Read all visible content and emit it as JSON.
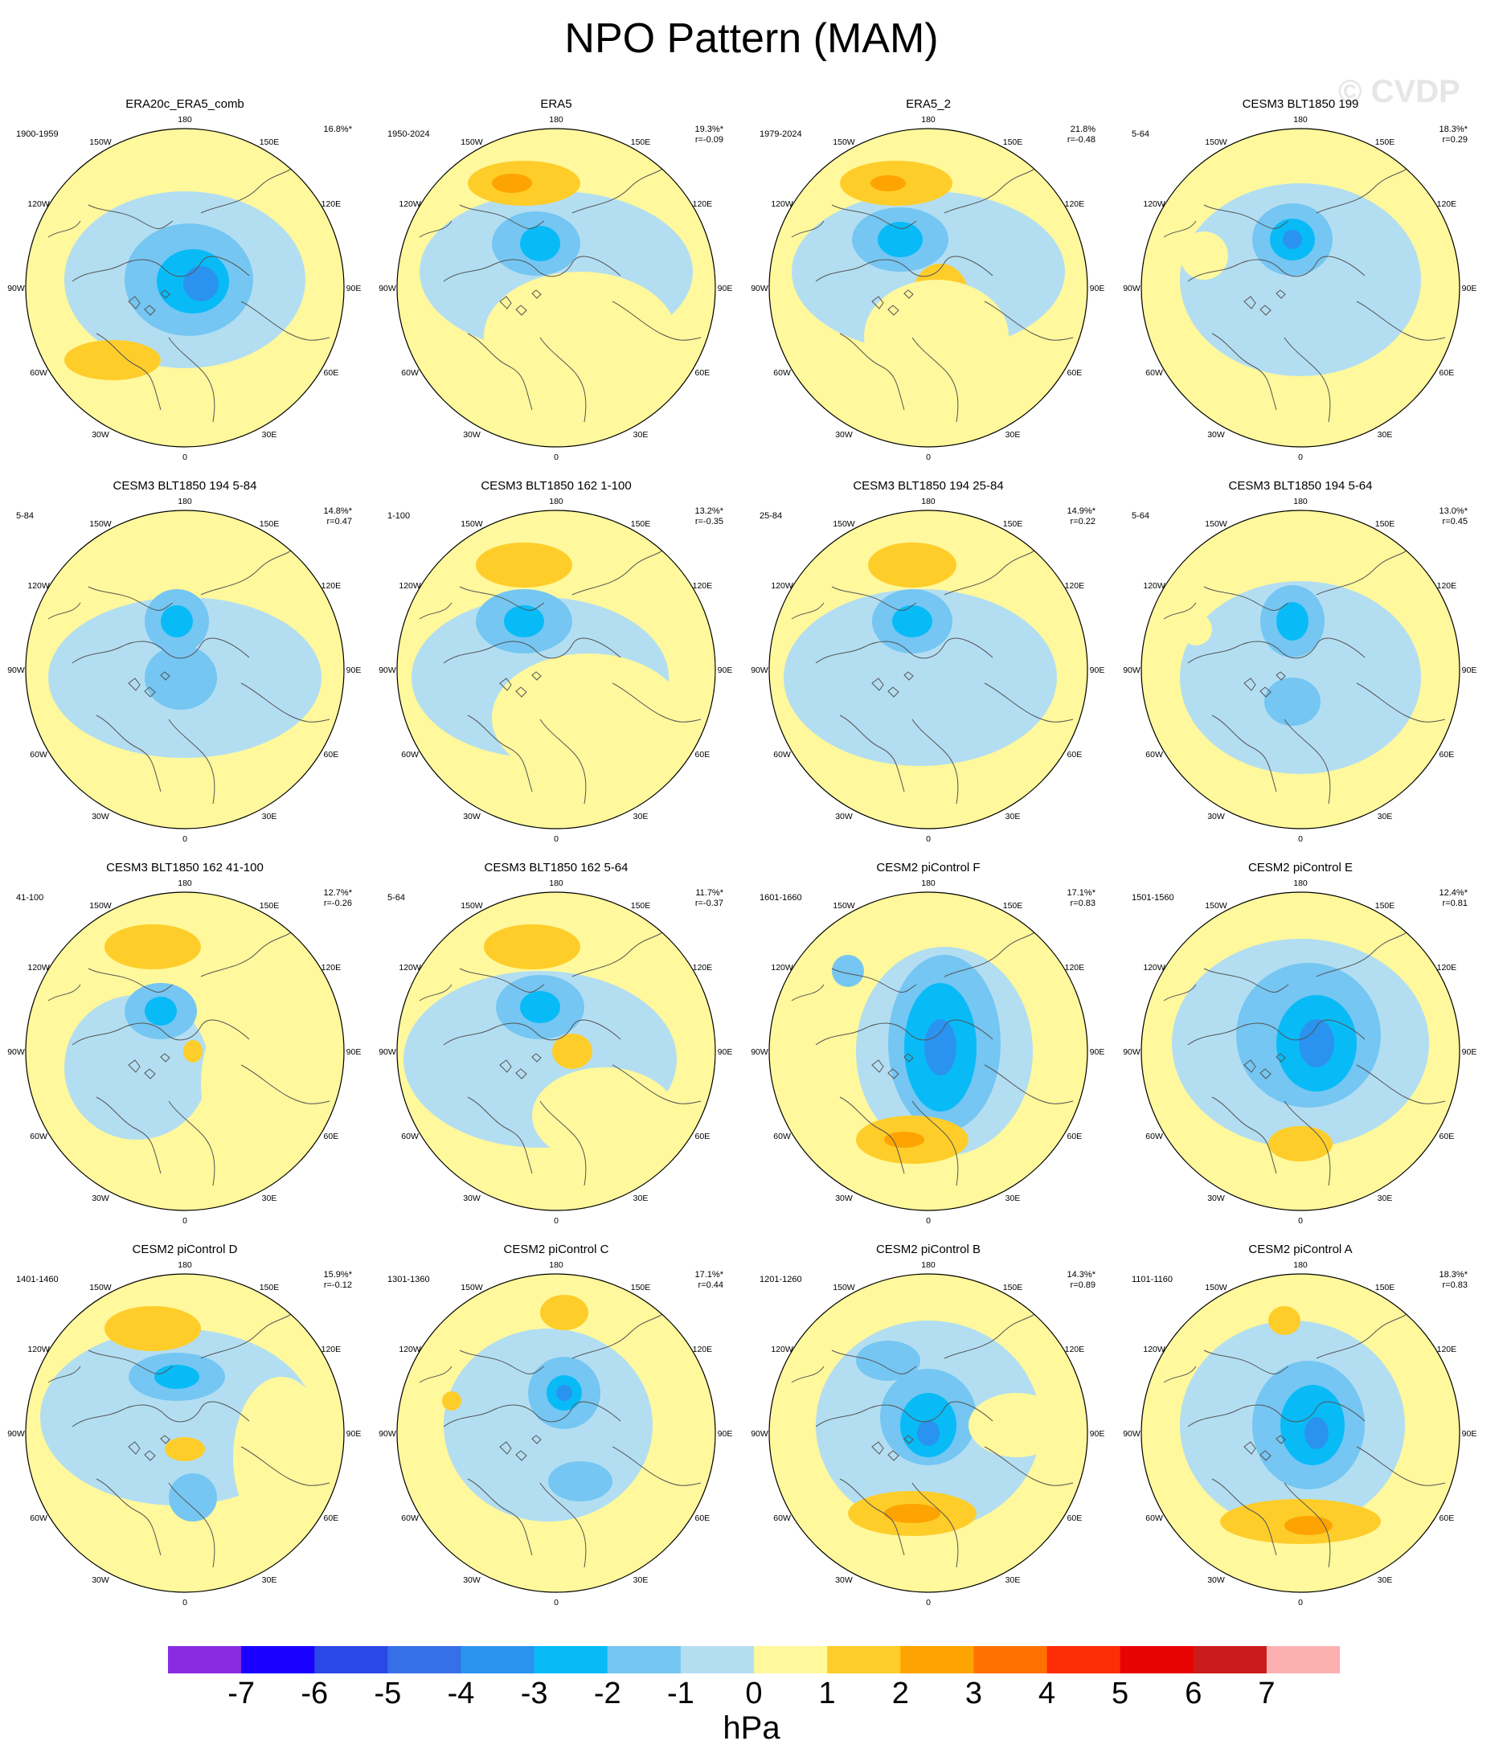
{
  "figure": {
    "title": "NPO Pattern (MAM)",
    "watermark": "© CVDP",
    "lon_labels": [
      "180",
      "150E",
      "120E",
      "90E",
      "60E",
      "30E",
      "0",
      "30W",
      "60W",
      "90W",
      "120W",
      "150W"
    ]
  },
  "colorbar": {
    "units": "hPa",
    "ticks": [
      "-7",
      "-6",
      "-5",
      "-4",
      "-3",
      "-2",
      "-1",
      "0",
      "1",
      "2",
      "3",
      "4",
      "5",
      "6",
      "7"
    ],
    "colors": [
      "#8a2be2",
      "#1a00ff",
      "#2b47e6",
      "#3670e8",
      "#2a93ef",
      "#08bbf7",
      "#75c6f2",
      "#b3def2",
      "#fff89c",
      "#fecd2a",
      "#fda403",
      "#fe7203",
      "#fe2d06",
      "#e80303",
      "#cc1b1b",
      "#fcb0b0"
    ]
  },
  "panels": [
    {
      "title": "ERA20c_ERA5_comb",
      "period": "1900-1959",
      "pct": "16.8%*",
      "r": ""
    },
    {
      "title": "ERA5",
      "period": "1950-2024",
      "pct": "19.3%*",
      "r": "r=-0.09"
    },
    {
      "title": "ERA5_2",
      "period": "1979-2024",
      "pct": "21.8%",
      "r": "r=-0.48"
    },
    {
      "title": "CESM3 BLT1850 199",
      "period": "5-64",
      "pct": "18.3%*",
      "r": "r=0.29"
    },
    {
      "title": "CESM3 BLT1850 194 5-84",
      "period": "5-84",
      "pct": "14.8%*",
      "r": "r=0.47"
    },
    {
      "title": "CESM3 BLT1850 162 1-100",
      "period": "1-100",
      "pct": "13.2%*",
      "r": "r=-0.35"
    },
    {
      "title": "CESM3 BLT1850 194 25-84",
      "period": "25-84",
      "pct": "14.9%*",
      "r": "r=0.22"
    },
    {
      "title": "CESM3 BLT1850 194 5-64",
      "period": "5-64",
      "pct": "13.0%*",
      "r": "r=0.45"
    },
    {
      "title": "CESM3 BLT1850 162 41-100",
      "period": "41-100",
      "pct": "12.7%*",
      "r": "r=-0.26"
    },
    {
      "title": "CESM3 BLT1850 162 5-64",
      "period": "5-64",
      "pct": "11.7%*",
      "r": "r=-0.37"
    },
    {
      "title": "CESM2 piControl F",
      "period": "1601-1660",
      "pct": "17.1%*",
      "r": "r=0.83"
    },
    {
      "title": "CESM2 piControl E",
      "period": "1501-1560",
      "pct": "12.4%*",
      "r": "r=0.81"
    },
    {
      "title": "CESM2 piControl D",
      "period": "1401-1460",
      "pct": "15.9%*",
      "r": "r=-0.12"
    },
    {
      "title": "CESM2 piControl C",
      "period": "1301-1360",
      "pct": "17.1%*",
      "r": "r=0.44"
    },
    {
      "title": "CESM2 piControl B",
      "period": "1201-1260",
      "pct": "14.3%*",
      "r": "r=0.89"
    },
    {
      "title": "CESM2 piControl A",
      "period": "1101-1160",
      "pct": "18.3%*",
      "r": "r=0.83"
    }
  ]
}
